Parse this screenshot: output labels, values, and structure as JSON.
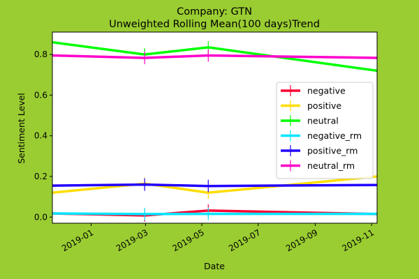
{
  "chart_data": {
    "type": "line",
    "title": "Company: GTN",
    "subtitle": "Unweighted Rolling Mean(100 days)Trend",
    "xlabel": "Date",
    "ylabel": "Sentiment Level",
    "xlim": [
      "2018-11-20",
      "2019-11-07"
    ],
    "ylim": [
      -0.03,
      0.91
    ],
    "x_ticks": [
      "2019-01",
      "2019-03",
      "2019-05",
      "2019-07",
      "2019-09",
      "2019-11"
    ],
    "y_ticks": [
      0.0,
      0.2,
      0.4,
      0.6,
      0.8
    ],
    "y_tick_labels": [
      "0.0",
      "0.2",
      "0.4",
      "0.6",
      "0.8"
    ],
    "grid": false,
    "legend_position": "center-right",
    "series": [
      {
        "name": "negative",
        "color": "#ff0033",
        "x": [
          "2018-11-20",
          "2019-02-28",
          "2019-05-08",
          "2019-11-07"
        ],
        "y": [
          0.018,
          0.008,
          0.032,
          0.015
        ]
      },
      {
        "name": "positive",
        "color": "#ffdd00",
        "x": [
          "2018-11-20",
          "2019-02-28",
          "2019-05-08",
          "2019-11-07"
        ],
        "y": [
          0.12,
          0.165,
          0.12,
          0.2
        ]
      },
      {
        "name": "neutral",
        "color": "#00ff00",
        "x": [
          "2018-11-20",
          "2019-02-28",
          "2019-05-08",
          "2019-11-07"
        ],
        "y": [
          0.86,
          0.8,
          0.835,
          0.72
        ]
      },
      {
        "name": "negative_rm",
        "color": "#00e5ff",
        "x": [
          "2018-11-20",
          "2019-02-28",
          "2019-05-08",
          "2019-11-07"
        ],
        "y": [
          0.018,
          0.015,
          0.016,
          0.016
        ]
      },
      {
        "name": "positive_rm",
        "color": "#2200ff",
        "x": [
          "2018-11-20",
          "2019-02-28",
          "2019-05-08",
          "2019-11-07"
        ],
        "y": [
          0.155,
          0.16,
          0.153,
          0.158
        ]
      },
      {
        "name": "neutral_rm",
        "color": "#ff00cc",
        "x": [
          "2018-11-20",
          "2019-02-28",
          "2019-05-08",
          "2019-11-07"
        ],
        "y": [
          0.795,
          0.783,
          0.795,
          0.783
        ]
      }
    ]
  }
}
